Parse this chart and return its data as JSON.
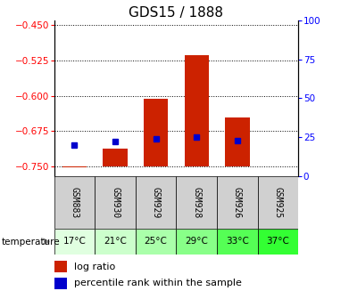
{
  "title": "GDS15 / 1888",
  "samples": [
    "GSM883",
    "GSM930",
    "GSM929",
    "GSM928",
    "GSM926",
    "GSM925"
  ],
  "temperatures": [
    "17°C",
    "21°C",
    "25°C",
    "29°C",
    "33°C",
    "37°C"
  ],
  "log_ratios": [
    -0.752,
    -0.712,
    -0.607,
    -0.513,
    -0.646,
    -0.75
  ],
  "percentile_ranks": [
    20,
    22,
    24,
    25,
    23,
    null
  ],
  "ylim_left": [
    -0.77,
    -0.44
  ],
  "ylim_right": [
    0,
    100
  ],
  "yticks_left": [
    -0.75,
    -0.675,
    -0.6,
    -0.525,
    -0.45
  ],
  "yticks_right": [
    0,
    25,
    50,
    75,
    100
  ],
  "bar_color": "#cc2200",
  "dot_color": "#0000cc",
  "temp_colors": [
    "#e0ffe0",
    "#ccffcc",
    "#aaffaa",
    "#88ff88",
    "#55ff55",
    "#33ff33"
  ],
  "gsm_bg": "#d0d0d0",
  "title_fontsize": 11,
  "tick_fontsize": 7.5,
  "legend_fontsize": 8
}
